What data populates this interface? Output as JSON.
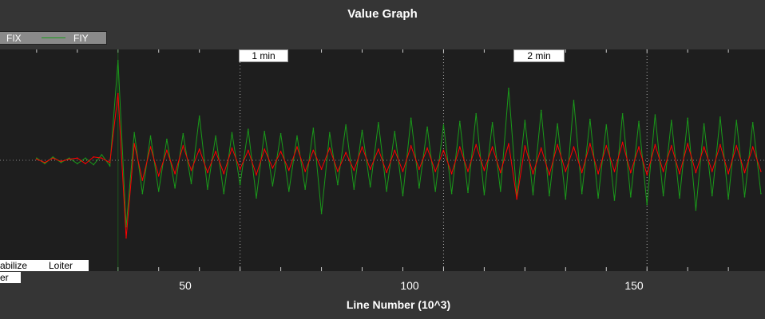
{
  "chart_data": {
    "type": "line",
    "title": "Value Graph",
    "xlabel": "Line Number (10^3)",
    "ylabel": "",
    "xlim": [
      -9,
      179
    ],
    "ylim": [
      -10,
      10
    ],
    "xticks": [
      50,
      100,
      150
    ],
    "grid": true,
    "legend": {
      "placement": "top-left",
      "entries": [
        "FIX",
        "FIY"
      ]
    },
    "time_markers": [
      {
        "x": 67,
        "label": "1 min"
      },
      {
        "x": 128,
        "label": "2 min"
      }
    ],
    "modes": [
      {
        "x": -9,
        "label": "abilize"
      },
      {
        "x": 20,
        "label": "Loiter"
      },
      {
        "x": -9,
        "label": "er"
      }
    ],
    "series": [
      {
        "name": "FIX",
        "color": "#ff0000",
        "x_start": 0,
        "x_step": 2,
        "values": [
          0.1,
          -0.2,
          0.2,
          -0.1,
          0.1,
          0.2,
          -0.3,
          0.3,
          0.2,
          -0.2,
          6,
          -7,
          1.5,
          -1.8,
          1.2,
          -1.4,
          0.9,
          -1.2,
          1.3,
          -0.9,
          1,
          -1.1,
          0.8,
          -1.2,
          1.1,
          -0.8,
          0.9,
          -1.3,
          1,
          -0.7,
          0.8,
          -0.9,
          1.2,
          -1,
          0.9,
          -0.8,
          1.1,
          -1,
          0.7,
          -0.9,
          1.2,
          -0.8,
          1,
          -1.1,
          0.9,
          -1,
          1.3,
          -0.8,
          1.1,
          -1,
          0.9,
          -1.2,
          1.2,
          -1,
          1.4,
          -0.9,
          1.2,
          -1.1,
          1.5,
          -3.5,
          1.3,
          -1.2,
          1.1,
          -1.3,
          1.4,
          -1,
          1.2,
          -1.1,
          1.5,
          -1.2,
          1.3,
          -1,
          1.6,
          -1.1,
          1.2,
          -1.3,
          1.4,
          -1,
          1.3,
          -1.2,
          1.5,
          -1.1,
          1.2,
          -1,
          1.4,
          -1.2,
          1.3,
          -1.1,
          1.2,
          -1
        ]
      },
      {
        "name": "FIY",
        "color": "#1a9a1a",
        "x_start": 0,
        "x_step": 2,
        "values": [
          0.2,
          -0.3,
          0.3,
          -0.2,
          0.2,
          -0.3,
          0.2,
          -0.4,
          0.5,
          -0.5,
          9,
          -6,
          2.5,
          -3,
          2.2,
          -2.8,
          1.9,
          -2.5,
          2.4,
          -2.1,
          4,
          -2.6,
          2.2,
          -3,
          2.5,
          -2.2,
          2.8,
          -3.4,
          2.6,
          -2.3,
          2.4,
          -2.8,
          2.2,
          -2.6,
          2.9,
          -4.8,
          2.5,
          -2.2,
          3.2,
          -2.6,
          2.7,
          -2.4,
          3.4,
          -2.8,
          2.6,
          -3.2,
          3.8,
          -2.5,
          3,
          -2.8,
          3.2,
          -3,
          3.5,
          -2.9,
          4.2,
          -3.1,
          3.4,
          -2.8,
          6.5,
          -3.3,
          3.6,
          -3.1,
          4.5,
          -3.2,
          3.3,
          -3.5,
          5.4,
          -3,
          3.7,
          -3.4,
          3.2,
          -3.6,
          4.2,
          -3.3,
          3.5,
          -4,
          4.1,
          -3.2,
          3.6,
          -3.4,
          3.8,
          -4.5,
          3.3,
          -3.2,
          3.9,
          -3.5,
          3.6,
          -3.3,
          3.4,
          -3
        ]
      }
    ]
  }
}
